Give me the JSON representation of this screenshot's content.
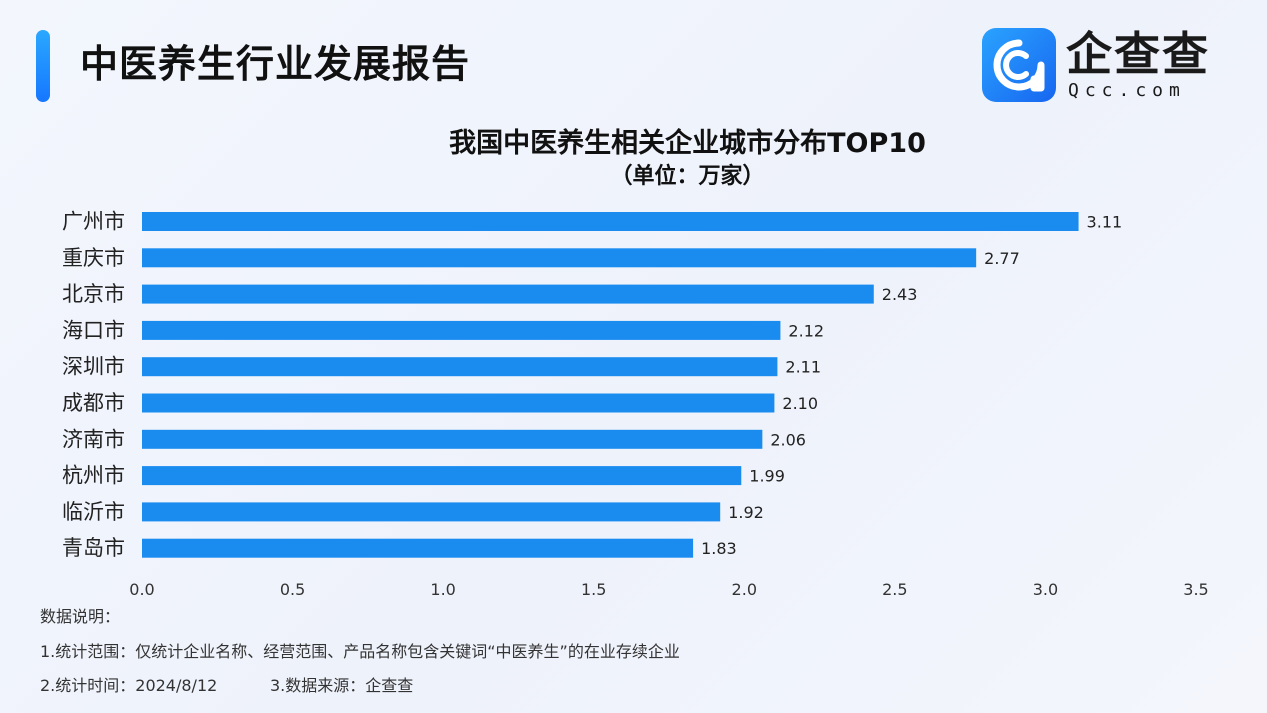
{
  "header": {
    "title": "中医养生行业发展报告",
    "logo_name": "企查查",
    "logo_sub": "Qcc.com"
  },
  "chart_data": {
    "type": "bar",
    "orientation": "horizontal",
    "title": "我国中医养生相关企业城市分布TOP10",
    "subtitle": "（单位：万家）",
    "categories": [
      "广州市",
      "重庆市",
      "北京市",
      "海口市",
      "深圳市",
      "成都市",
      "济南市",
      "杭州市",
      "临沂市",
      "青岛市"
    ],
    "values": [
      3.11,
      2.77,
      2.43,
      2.12,
      2.11,
      2.1,
      2.06,
      1.99,
      1.92,
      1.83
    ],
    "value_labels": [
      "3.11",
      "2.77",
      "2.43",
      "2.12",
      "2.11",
      "2.10",
      "2.06",
      "1.99",
      "1.92",
      "1.83"
    ],
    "xlim": [
      0,
      3.5
    ],
    "x_ticks": [
      0,
      0.5,
      1,
      1.5,
      2,
      2.5,
      3,
      3.5
    ],
    "x_tick_labels": [
      "0.0",
      "0.5",
      "1.0",
      "1.5",
      "2.0",
      "2.5",
      "3.0",
      "3.5"
    ],
    "grid": false,
    "bar_color": "#1a8cf0"
  },
  "notes": {
    "heading": "数据说明：",
    "line1": "1.统计范围：仅统计企业名称、经营范围、产品名称包含关键词“中医养生”的在业存续企业",
    "line2": "2.统计时间：2024/8/12",
    "line3": "3.数据来源：企查查"
  }
}
